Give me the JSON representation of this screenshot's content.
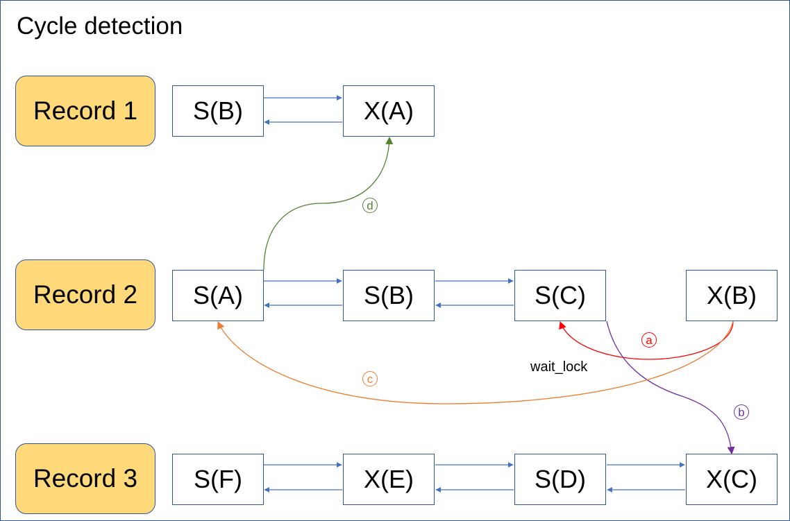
{
  "title": "Cycle detection",
  "records": [
    {
      "label": "Record 1",
      "locks": [
        "S(B)",
        "X(A)"
      ]
    },
    {
      "label": "Record 2",
      "locks": [
        "S(A)",
        "S(B)",
        "S(C)",
        "X(B)"
      ]
    },
    {
      "label": "Record 3",
      "locks": [
        "S(F)",
        "X(E)",
        "S(D)",
        "X(C)"
      ]
    }
  ],
  "edges": {
    "a": {
      "mark": "a",
      "color": "#ff0000"
    },
    "b": {
      "mark": "b",
      "color": "#7030a0"
    },
    "c": {
      "mark": "c",
      "color": "#ed7d31"
    },
    "d": {
      "mark": "d",
      "color": "#548235"
    }
  },
  "wait_label": "wait_lock",
  "colors": {
    "record_fill": "#ffd97a",
    "border": "#2f5597",
    "list_arrow": "#4472c4"
  }
}
